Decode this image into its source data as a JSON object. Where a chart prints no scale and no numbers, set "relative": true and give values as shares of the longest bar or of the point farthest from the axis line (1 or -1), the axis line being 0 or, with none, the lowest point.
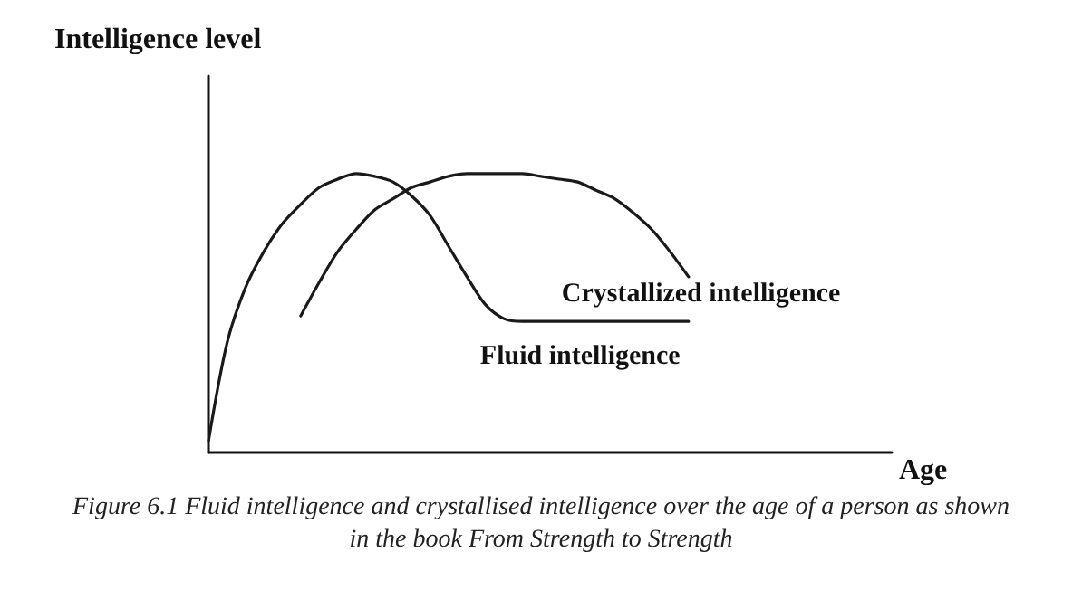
{
  "chart_data": {
    "type": "line",
    "relative": true,
    "ylabel": "Intelligence level",
    "xlabel": "Age",
    "categories": [
      null,
      null,
      null,
      null,
      null,
      null,
      null,
      null,
      null,
      null,
      null,
      null,
      null,
      null,
      null,
      null,
      null,
      null,
      null,
      null,
      null,
      null,
      null,
      null,
      null,
      null,
      null,
      null,
      null,
      null,
      null,
      null,
      null,
      null,
      null,
      null,
      null,
      null
    ],
    "series": [
      {
        "name": "Fluid intelligence",
        "color": "#1a1a1a",
        "values": [
          0.04,
          0.39,
          0.59,
          0.72,
          0.82,
          0.89,
          0.95,
          0.98,
          1,
          0.99,
          0.97,
          0.92,
          0.85,
          0.74,
          0.63,
          0.53,
          0.48,
          0.47,
          0.47,
          0.47,
          0.47,
          0.47,
          0.47,
          0.47,
          0.47,
          0.47,
          0.47,
          null,
          null,
          null,
          null,
          null,
          null,
          null,
          null,
          null,
          null,
          null
        ]
      },
      {
        "name": "Crystallized intelligence",
        "color": "#1a1a1a",
        "values": [
          null,
          null,
          null,
          null,
          null,
          0.49,
          0.61,
          0.72,
          0.8,
          0.87,
          0.91,
          0.95,
          0.97,
          0.99,
          1,
          1,
          1,
          1,
          0.99,
          0.98,
          0.97,
          0.94,
          0.91,
          0.86,
          0.8,
          0.72,
          0.63,
          null,
          null,
          null,
          null,
          null,
          null,
          null,
          null,
          null,
          null,
          null
        ]
      }
    ],
    "annotations": [
      "Figure 6.1 Fluid intelligence and crystallised intelligence over the age of a person as shown in the book From Strength to Strength"
    ],
    "grid": false,
    "legend": false,
    "marker": "none",
    "line_style": "solid"
  }
}
